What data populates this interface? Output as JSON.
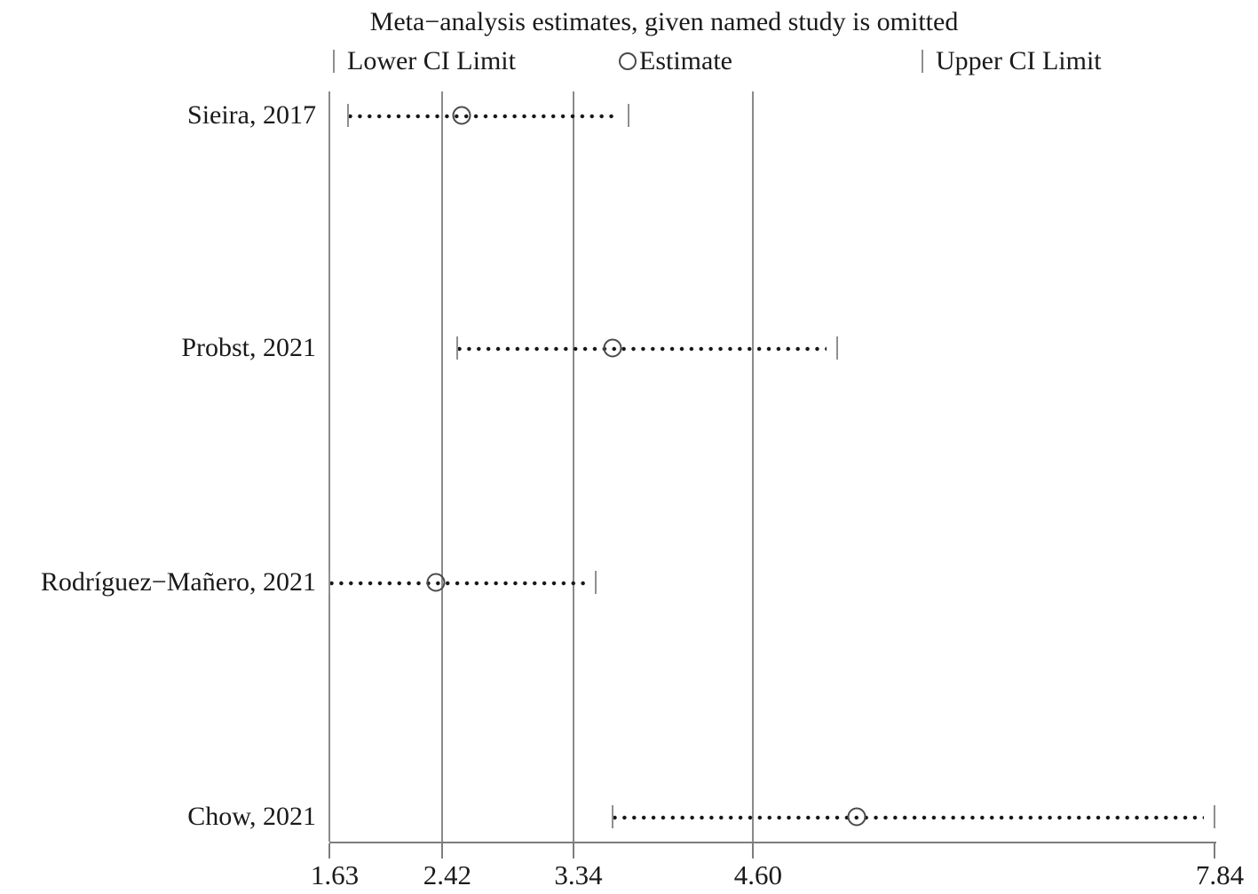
{
  "chart_data": {
    "type": "scatter",
    "subtype": "leave-one-out meta-analysis forest plot (estimate with CI whiskers)",
    "title": "Meta−analysis estimates, given named study is omitted",
    "legend": {
      "lower_label": "Lower CI Limit",
      "estimate_label": "Estimate",
      "upper_label": "Upper CI Limit",
      "position": "top"
    },
    "x_axis": {
      "scale": "linear",
      "range": [
        1.63,
        7.84
      ],
      "ticks": [
        {
          "value": 1.63,
          "label": "1.63",
          "gridline": true
        },
        {
          "value": 2.42,
          "label": "2.42",
          "gridline": true
        },
        {
          "value": 3.34,
          "label": "3.34",
          "gridline": true
        },
        {
          "value": 4.6,
          "label": "4.60",
          "gridline": true
        },
        {
          "value": 7.84,
          "label": "7.84",
          "gridline": false
        }
      ]
    },
    "grid": "vertical gridlines only",
    "rows": [
      {
        "study": "Sieira, 2017",
        "lower": 1.76,
        "estimate": 2.56,
        "upper": 3.73
      },
      {
        "study": "Probst, 2021",
        "lower": 2.53,
        "estimate": 3.62,
        "upper": 5.19
      },
      {
        "study": "Rodríguez−Mañero, 2021",
        "lower": 1.63,
        "estimate": 2.38,
        "upper": 3.5
      },
      {
        "study": "Chow, 2021",
        "lower": 3.62,
        "estimate": 5.33,
        "upper": 7.84
      }
    ],
    "colors": {
      "background": "#ffffff",
      "text": "#1a1a1a",
      "gridline": "#8a8a8a",
      "axis": "#7d7d7d",
      "ci_tick": "#8f8f8f",
      "dots": "#161616",
      "marker_stroke": "#4a4a4a"
    }
  }
}
